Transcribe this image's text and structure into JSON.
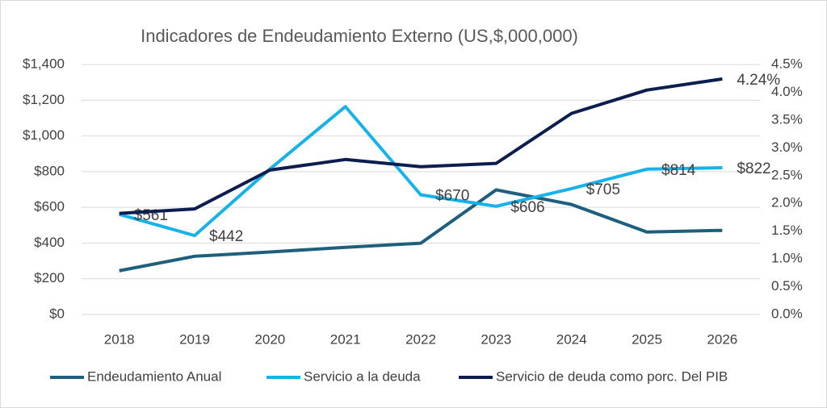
{
  "chart_data": {
    "type": "line",
    "title": "Indicadores de Endeudamiento Externo (US,$,000,000)",
    "categories": [
      "2018",
      "2019",
      "2020",
      "2021",
      "2022",
      "2023",
      "2024",
      "2025",
      "2026"
    ],
    "series": [
      {
        "name": "Endeudamiento Anual",
        "color": "#1d5f7c",
        "values": [
          245,
          326,
          350,
          376,
          399,
          698,
          616,
          462,
          471
        ]
      },
      {
        "name": "Servicio a la deuda",
        "color": "#17b2ea",
        "values": [
          561,
          442,
          815,
          1164,
          670,
          606,
          705,
          814,
          822
        ],
        "value_labels": [
          "$561",
          "$442",
          null,
          null,
          "$670",
          "$606",
          "$705",
          "$814",
          "$822"
        ]
      },
      {
        "name": "Servicio de deuda como porc. Del PIB",
        "color": "#0c1d4f",
        "axis": "y2",
        "values": [
          1.82,
          1.9,
          2.6,
          2.79,
          2.66,
          2.72,
          3.62,
          4.04,
          4.24
        ],
        "value_labels": [
          null,
          null,
          null,
          null,
          null,
          null,
          null,
          null,
          "4.24%"
        ]
      }
    ],
    "ylim": [
      0,
      1400
    ],
    "yticks": [
      {
        "value": 0,
        "label": "$0"
      },
      {
        "value": 200,
        "label": "$200"
      },
      {
        "value": 400,
        "label": "$400"
      },
      {
        "value": 600,
        "label": "$600"
      },
      {
        "value": 800,
        "label": "$800"
      },
      {
        "value": 1000,
        "label": "$1,000"
      },
      {
        "value": 1200,
        "label": "$1,200"
      },
      {
        "value": 1400,
        "label": "$1,400"
      }
    ],
    "y2lim": [
      0,
      4.5
    ],
    "y2ticks": [
      {
        "value": 0,
        "label": "0.0%"
      },
      {
        "value": 0.5,
        "label": "0.5%"
      },
      {
        "value": 1,
        "label": "1.0%"
      },
      {
        "value": 1.5,
        "label": "1.5%"
      },
      {
        "value": 2,
        "label": "2.0%"
      },
      {
        "value": 2.5,
        "label": "2.5%"
      },
      {
        "value": 3,
        "label": "3.0%"
      },
      {
        "value": 3.5,
        "label": "3.5%"
      },
      {
        "value": 4,
        "label": "4.0%"
      },
      {
        "value": 4.5,
        "label": "4.5%"
      }
    ],
    "grid": true,
    "legend": "bottom"
  }
}
